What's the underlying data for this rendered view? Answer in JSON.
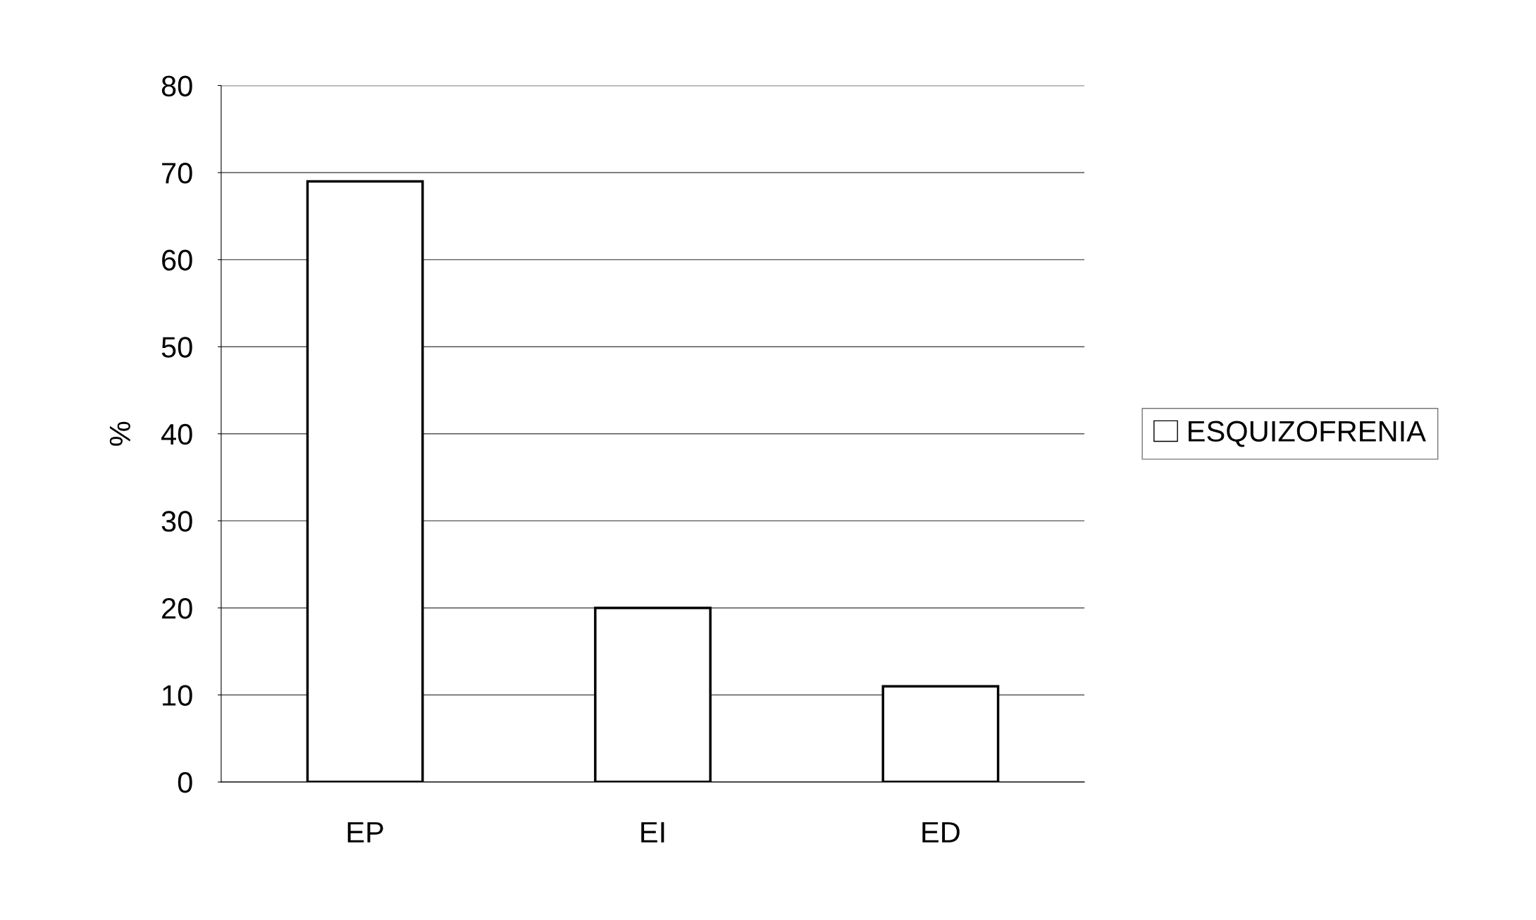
{
  "chart_data": {
    "type": "bar",
    "ylabel": "%",
    "categories": [
      "EP",
      "EI",
      "ED"
    ],
    "series": [
      {
        "name": "ESQUIZOFRENIA",
        "color": "#ffffff",
        "values": [
          69,
          20,
          11
        ]
      }
    ],
    "ylim": [
      0,
      80
    ],
    "yticks": [
      0,
      10,
      20,
      30,
      40,
      50,
      60,
      70,
      80
    ],
    "grid": "y",
    "legend": "right"
  }
}
